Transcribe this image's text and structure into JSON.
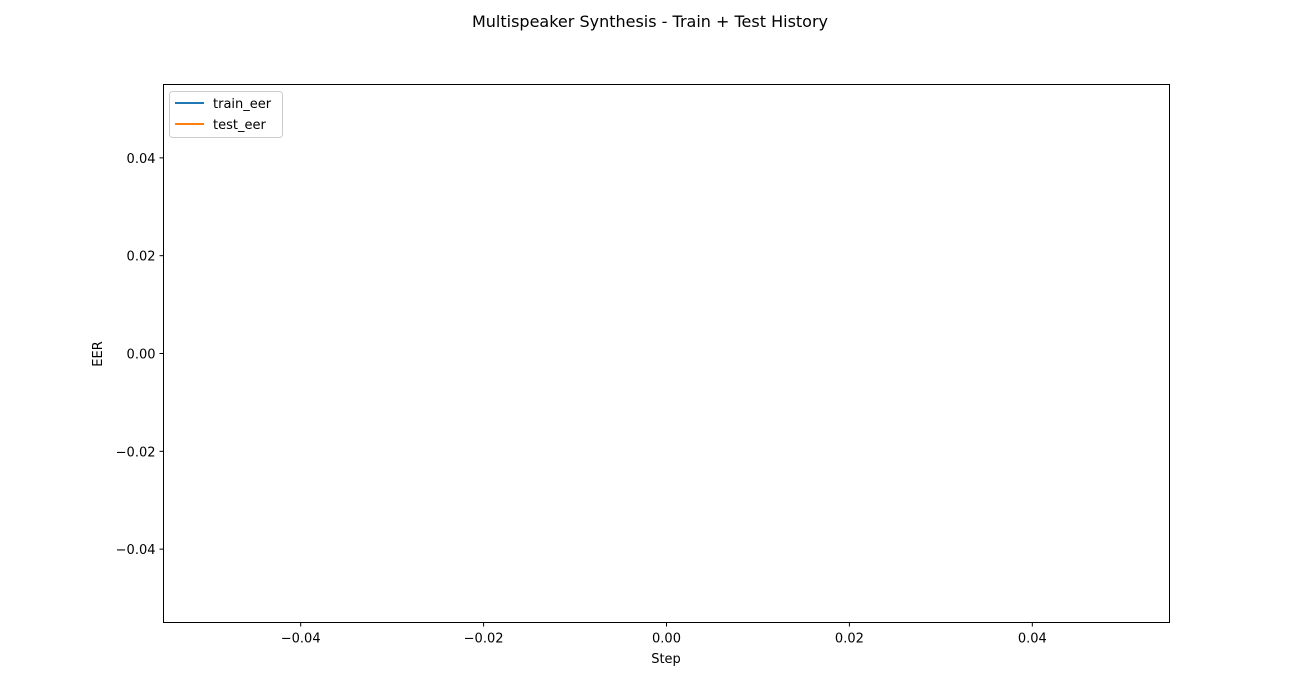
{
  "chart_data": {
    "type": "line",
    "title": "Multispeaker Synthesis - Train + Test History",
    "xlabel": "Step",
    "ylabel": "EER",
    "xlim": [
      -0.055,
      0.055
    ],
    "ylim": [
      -0.055,
      0.055
    ],
    "xticks": [
      -0.04,
      -0.02,
      0.0,
      0.02,
      0.04
    ],
    "yticks": [
      -0.04,
      -0.02,
      0.0,
      0.02,
      0.04
    ],
    "xtick_labels": [
      "−0.04",
      "−0.02",
      "0.00",
      "0.02",
      "0.04"
    ],
    "ytick_labels": [
      "−0.04",
      "−0.02",
      "0.00",
      "0.02",
      "0.04"
    ],
    "grid": false,
    "legend_position": "upper-left",
    "series": [
      {
        "name": "train_eer",
        "color": "#1f77b4",
        "x": [],
        "y": []
      },
      {
        "name": "test_eer",
        "color": "#ff7f0e",
        "x": [],
        "y": []
      }
    ]
  }
}
